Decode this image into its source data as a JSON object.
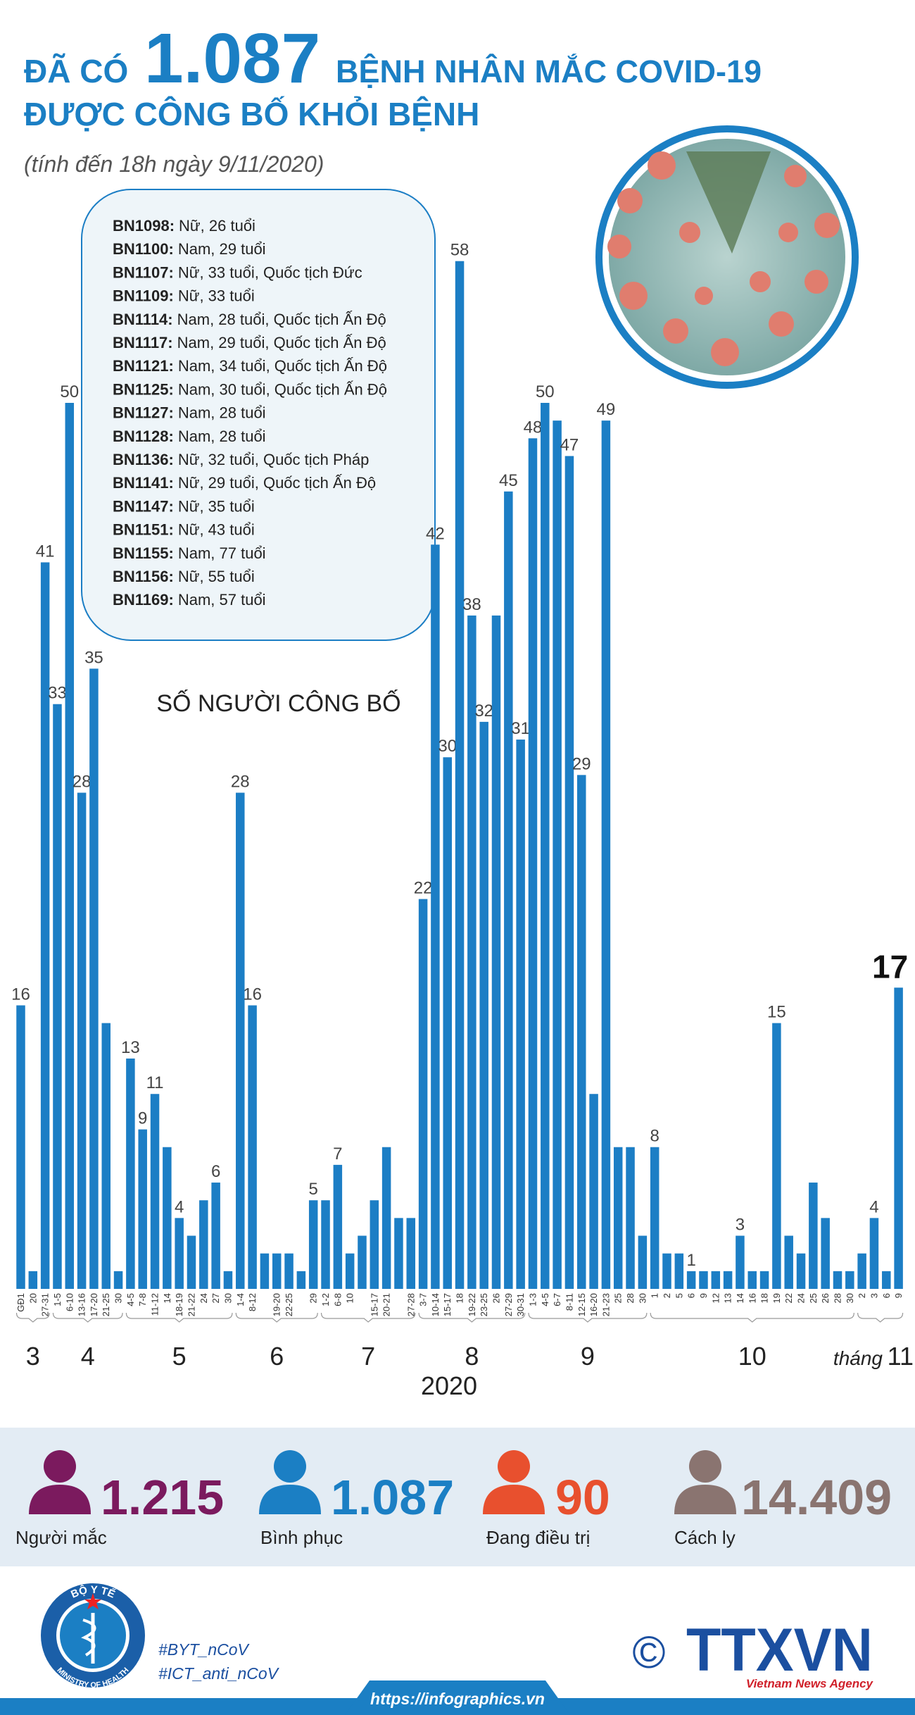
{
  "header": {
    "title_prefix": "ĐÃ CÓ",
    "title_number": "1.087",
    "title_suffix": "BỆNH NHÂN MẮC COVID-19",
    "title_line2": "ĐƯỢC CÔNG BỐ KHỎI BỆNH",
    "subtitle": "(tính đến 18h ngày 9/11/2020)"
  },
  "patients": [
    {
      "id": "BN1098:",
      "info": "Nữ, 26 tuổi"
    },
    {
      "id": "BN1100:",
      "info": "Nam, 29 tuổi"
    },
    {
      "id": "BN1107:",
      "info": "Nữ, 33 tuổi, Quốc tịch Đức"
    },
    {
      "id": "BN1109:",
      "info": "Nữ, 33 tuổi"
    },
    {
      "id": "BN1114:",
      "info": "Nam, 28 tuổi, Quốc tịch Ấn Độ"
    },
    {
      "id": "BN1117:",
      "info": "Nam, 29 tuổi, Quốc tịch Ấn Độ"
    },
    {
      "id": "BN1121:",
      "info": "Nam, 34 tuổi, Quốc tịch Ấn Độ"
    },
    {
      "id": "BN1125:",
      "info": "Nam, 30 tuổi, Quốc tịch Ấn Độ"
    },
    {
      "id": "BN1127:",
      "info": "Nam, 28 tuổi"
    },
    {
      "id": "BN1128:",
      "info": "Nam, 28 tuổi"
    },
    {
      "id": "BN1136:",
      "info": "Nữ, 32 tuổi, Quốc tịch Pháp"
    },
    {
      "id": "BN1141:",
      "info": "Nữ, 29 tuổi, Quốc tịch Ấn Độ"
    },
    {
      "id": "BN1147:",
      "info": "Nữ, 35 tuổi"
    },
    {
      "id": "BN1151:",
      "info": "Nữ, 43 tuổi"
    },
    {
      "id": "BN1155:",
      "info": "Nam, 77 tuổi"
    },
    {
      "id": "BN1156:",
      "info": "Nữ, 55 tuổi"
    },
    {
      "id": "BN1169:",
      "info": "Nam, 57 tuổi"
    }
  ],
  "chart_data": {
    "type": "bar",
    "title": "SỐ NGƯỜI CÔNG BỐ",
    "categories": [
      "GĐ1",
      "20",
      "27-31",
      "1-5",
      "6-10",
      "13-16",
      "17-20",
      "21-25",
      "30",
      "4-5",
      "7-8",
      "11-12",
      "14",
      "18-19",
      "21-22",
      "24",
      "27",
      "30",
      "1-4",
      "8-12",
      null,
      "19-20",
      "22-25",
      null,
      "29",
      "1-2",
      "6-8",
      "10",
      null,
      "15-17",
      "20-21",
      null,
      "27-28",
      "3-7",
      "10-14",
      "15-17",
      "18",
      "19-22",
      "23-25",
      "26",
      "27-29",
      "30-31",
      "1-3",
      "4-5",
      "6-7",
      "8-11",
      "12-15",
      "16-20",
      "21-23",
      "25",
      "28",
      "30",
      "1",
      "2",
      "5",
      "6",
      "9",
      "12",
      "13",
      "14",
      "16",
      "18",
      "19",
      "22",
      "24",
      "25",
      "26",
      "28",
      "30",
      "2",
      "3",
      "6",
      "9"
    ],
    "values": [
      16,
      1,
      41,
      33,
      50,
      28,
      35,
      15,
      1,
      13,
      9,
      11,
      8,
      4,
      3,
      5,
      6,
      1,
      28,
      16,
      2,
      2,
      2,
      1,
      5,
      5,
      7,
      2,
      3,
      5,
      8,
      4,
      4,
      22,
      42,
      30,
      58,
      38,
      32,
      38,
      45,
      31,
      48,
      50,
      49,
      47,
      29,
      11,
      49,
      8,
      8,
      3,
      8,
      2,
      2,
      1,
      1,
      1,
      1,
      3,
      1,
      1,
      15,
      3,
      2,
      6,
      4,
      1,
      1,
      2,
      4,
      1,
      17
    ],
    "value_labels": [
      "16",
      null,
      "41",
      "33",
      "50",
      "28",
      "35",
      null,
      null,
      "13",
      "9",
      "11",
      null,
      "4",
      null,
      null,
      "6",
      null,
      "28",
      "16",
      null,
      null,
      null,
      null,
      "5",
      null,
      "7",
      null,
      null,
      null,
      null,
      null,
      null,
      "22",
      "42",
      "30",
      "58",
      "38",
      "32",
      null,
      "45",
      "31",
      "48",
      "50",
      null,
      "47",
      "29",
      null,
      "49",
      null,
      null,
      null,
      "8",
      null,
      null,
      "1",
      null,
      null,
      null,
      "3",
      null,
      null,
      "15",
      null,
      null,
      null,
      null,
      null,
      null,
      null,
      "4",
      null,
      "17"
    ],
    "color": "#1c7ec5",
    "ylim": [
      0,
      60
    ],
    "months": [
      "3",
      "4",
      "5",
      "6",
      "7",
      "8",
      "9",
      "10",
      "11"
    ],
    "month_prefix": "tháng",
    "year": "2020"
  },
  "stats": [
    {
      "value": "1.215",
      "label": "Người mắc",
      "color": "#7b1a5e"
    },
    {
      "value": "1.087",
      "label": "Bình phục",
      "color": "#1b7fc4"
    },
    {
      "value": "90",
      "label": "Đang điều trị",
      "color": "#e8502e"
    },
    {
      "value": "14.409",
      "label": "Cách ly",
      "color": "#8a7470"
    }
  ],
  "footer": {
    "ministry": "BỘ Y TẾ",
    "ministry_en": "MINISTRY OF HEALTH",
    "hashtag1": "#BYT_nCoV",
    "hashtag2": "#ICT_anti_nCoV",
    "copyright": "©",
    "agency": "TTXVN",
    "agency_en": "Vietnam News Agency",
    "url": "https://infographics.vn"
  }
}
